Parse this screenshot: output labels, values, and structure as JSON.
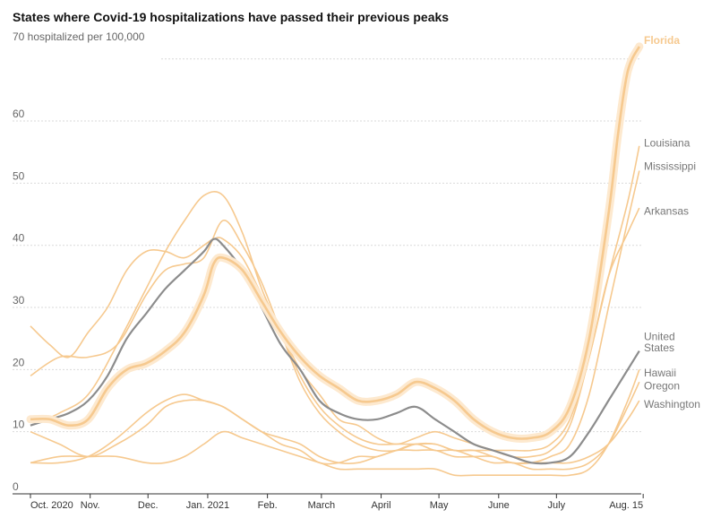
{
  "chart_data": {
    "type": "line",
    "title": "States where Covid-19 hospitalizations have passed their previous peaks",
    "ylabel": "70 hospitalized per 100,000",
    "ylim": [
      0,
      74
    ],
    "yticks": [
      0,
      10,
      20,
      30,
      40,
      50,
      60
    ],
    "xlim": [
      0,
      317
    ],
    "xticks": [
      {
        "label": "Oct. 2020",
        "x": 0
      },
      {
        "label": "Nov.",
        "x": 31
      },
      {
        "label": "Dec.",
        "x": 61
      },
      {
        "label": "Jan. 2021",
        "x": 92
      },
      {
        "label": "Feb.",
        "x": 123
      },
      {
        "label": "March",
        "x": 151
      },
      {
        "label": "April",
        "x": 182
      },
      {
        "label": "May",
        "x": 212
      },
      {
        "label": "June",
        "x": 243
      },
      {
        "label": "July",
        "x": 273
      },
      {
        "label": "Aug. 15",
        "x": 318
      }
    ],
    "colors": {
      "states": "#f6c98f",
      "highlight_glow": "#fde9cf",
      "us": "#8c8c8c"
    },
    "series": [
      {
        "name": "Louisiana",
        "label": "Louisiana",
        "x": [
          0,
          10,
          20,
          30,
          40,
          50,
          60,
          70,
          80,
          90,
          95,
          100,
          110,
          120,
          130,
          140,
          150,
          160,
          170,
          180,
          190,
          200,
          210,
          220,
          230,
          240,
          250,
          260,
          270,
          280,
          290,
          300,
          310,
          316
        ],
        "y": [
          27,
          24,
          22,
          26,
          30,
          36,
          39,
          39,
          38,
          40,
          41,
          41,
          38,
          32,
          26,
          20,
          16,
          12,
          11,
          9,
          8,
          9,
          10,
          9,
          8,
          7,
          6,
          6,
          7,
          11,
          22,
          35,
          47,
          56
        ]
      },
      {
        "name": "Mississippi",
        "label": "Mississippi",
        "x": [
          0,
          15,
          30,
          45,
          60,
          70,
          80,
          90,
          100,
          110,
          120,
          130,
          140,
          150,
          160,
          170,
          180,
          190,
          200,
          210,
          220,
          230,
          240,
          250,
          260,
          270,
          280,
          290,
          300,
          310,
          316
        ],
        "y": [
          19,
          22,
          22,
          24,
          32,
          36,
          37,
          38,
          44,
          40,
          34,
          26,
          18,
          13,
          10,
          8,
          7,
          7,
          8,
          8,
          7,
          7,
          6,
          5,
          5,
          6,
          8,
          16,
          30,
          44,
          52
        ]
      },
      {
        "name": "Arkansas",
        "label": "Arkansas",
        "x": [
          0,
          15,
          30,
          45,
          60,
          70,
          80,
          90,
          100,
          110,
          120,
          130,
          140,
          150,
          160,
          170,
          180,
          190,
          200,
          210,
          220,
          230,
          240,
          250,
          260,
          270,
          280,
          290,
          300,
          310,
          316
        ],
        "y": [
          11,
          13,
          16,
          24,
          33,
          39,
          44,
          48,
          48,
          42,
          33,
          26,
          19,
          14,
          11,
          9,
          8,
          8,
          8,
          8,
          7,
          7,
          7,
          7,
          7,
          8,
          12,
          22,
          35,
          42,
          46
        ]
      },
      {
        "name": "Hawaii",
        "label": "Hawaii",
        "x": [
          0,
          15,
          30,
          45,
          60,
          70,
          80,
          90,
          100,
          110,
          120,
          130,
          140,
          150,
          160,
          170,
          180,
          190,
          200,
          210,
          220,
          230,
          240,
          250,
          260,
          270,
          280,
          290,
          300,
          310,
          316
        ],
        "y": [
          5,
          6,
          6,
          6,
          5,
          5,
          6,
          8,
          10,
          9,
          8,
          7,
          6,
          5,
          4,
          4,
          4,
          4,
          4,
          4,
          3,
          3,
          3,
          3,
          3,
          3,
          3,
          4,
          8,
          15,
          20
        ]
      },
      {
        "name": "Oregon",
        "label": "Oregon",
        "x": [
          0,
          15,
          30,
          45,
          60,
          70,
          80,
          90,
          100,
          110,
          120,
          130,
          140,
          150,
          160,
          170,
          180,
          190,
          200,
          210,
          220,
          230,
          240,
          250,
          260,
          270,
          280,
          290,
          300,
          310,
          316
        ],
        "y": [
          10,
          8,
          6,
          8,
          11,
          14,
          15,
          15,
          14,
          12,
          10,
          9,
          8,
          6,
          5,
          5,
          6,
          7,
          8,
          7,
          7,
          6,
          5,
          5,
          4,
          4,
          4,
          5,
          8,
          14,
          18
        ]
      },
      {
        "name": "Washington",
        "label": "Washington",
        "x": [
          0,
          15,
          30,
          45,
          60,
          70,
          80,
          90,
          100,
          110,
          120,
          130,
          140,
          150,
          160,
          170,
          180,
          190,
          200,
          210,
          220,
          230,
          240,
          250,
          260,
          270,
          280,
          290,
          300,
          310,
          316
        ],
        "y": [
          5,
          5,
          6,
          9,
          13,
          15,
          16,
          15,
          14,
          12,
          10,
          8,
          7,
          5,
          5,
          6,
          6,
          7,
          7,
          7,
          6,
          6,
          6,
          5,
          5,
          5,
          5,
          6,
          8,
          12,
          15
        ]
      },
      {
        "name": "Florida",
        "label": "Florida",
        "highlight": true,
        "x": [
          0,
          10,
          20,
          30,
          40,
          50,
          60,
          70,
          80,
          90,
          95,
          100,
          110,
          120,
          130,
          140,
          150,
          160,
          170,
          180,
          190,
          200,
          210,
          220,
          230,
          240,
          250,
          260,
          270,
          280,
          290,
          300,
          305,
          310,
          316
        ],
        "y": [
          12,
          12,
          11,
          12,
          17,
          20,
          21,
          23,
          26,
          32,
          37,
          38,
          36,
          31,
          26,
          22,
          19,
          17,
          15,
          15,
          16,
          18,
          17,
          15,
          12,
          10,
          9,
          9,
          10,
          14,
          25,
          45,
          58,
          68,
          72
        ]
      },
      {
        "name": "United States",
        "label": "United\nStates",
        "us": true,
        "x": [
          0,
          10,
          20,
          30,
          40,
          50,
          60,
          70,
          80,
          90,
          95,
          100,
          110,
          120,
          130,
          140,
          150,
          160,
          170,
          180,
          190,
          200,
          210,
          220,
          230,
          240,
          250,
          260,
          270,
          280,
          290,
          300,
          310,
          316
        ],
        "y": [
          11,
          12,
          13,
          15,
          19,
          25,
          29,
          33,
          36,
          39,
          41,
          40,
          36,
          30,
          24,
          20,
          15,
          13,
          12,
          12,
          13,
          14,
          12,
          10,
          8,
          7,
          6,
          5,
          5,
          6,
          10,
          15,
          20,
          23
        ]
      }
    ],
    "labels": [
      {
        "series": "Florida",
        "text": "Florida"
      },
      {
        "series": "Louisiana",
        "text": "Louisiana"
      },
      {
        "series": "Mississippi",
        "text": "Mississippi"
      },
      {
        "series": "Arkansas",
        "text": "Arkansas"
      },
      {
        "series": "United States",
        "text": "United"
      },
      {
        "series": "United States",
        "text": "States"
      },
      {
        "series": "Hawaii",
        "text": "Hawaii"
      },
      {
        "series": "Oregon",
        "text": "Oregon"
      },
      {
        "series": "Washington",
        "text": "Washington"
      }
    ]
  }
}
